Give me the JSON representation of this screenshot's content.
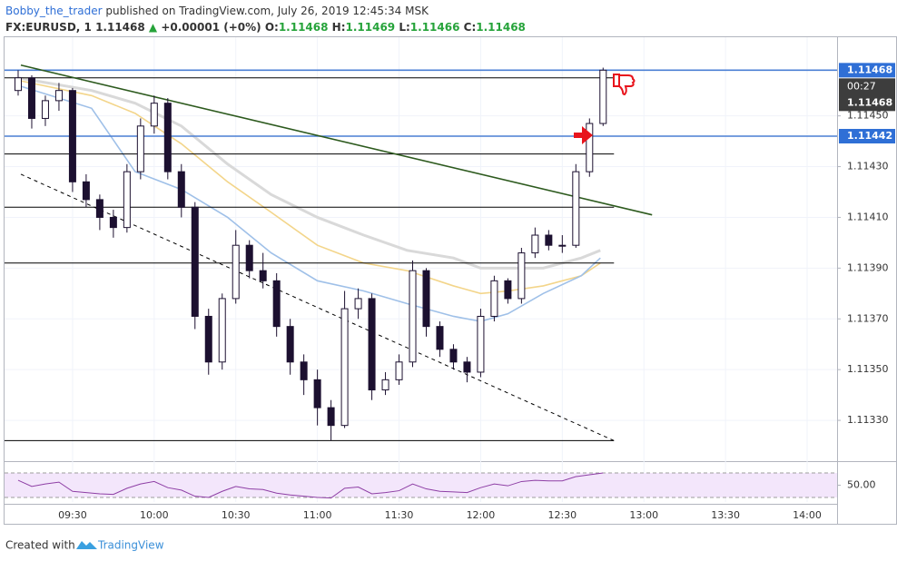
{
  "header": {
    "author": "Bobby_the_trader",
    "published": " published on TradingView.com, July 26, 2019 12:45:34 MSK",
    "symbol": "FX:EURUSD, 1",
    "last": "1.11468",
    "arrow": "▲",
    "change": "+0.00001 (+0%)",
    "o_label": "O:",
    "o": "1.11468",
    "h_label": "H:",
    "h": "1.11469",
    "l_label": "L:",
    "l": "1.11466",
    "c_label": "C:",
    "c": "1.11468"
  },
  "footer": {
    "created": "Created with",
    "brand": "TradingView"
  },
  "chart_data": {
    "type": "candlestick",
    "x": [
      "09:10",
      "09:15",
      "09:20",
      "09:25",
      "09:30",
      "09:35",
      "09:40",
      "09:45",
      "09:50",
      "09:55",
      "10:00",
      "10:05",
      "10:10",
      "10:15",
      "10:20",
      "10:25",
      "10:30",
      "10:35",
      "10:40",
      "10:45",
      "10:50",
      "10:55",
      "11:00",
      "11:05",
      "11:10",
      "11:15",
      "11:20",
      "11:25",
      "11:30",
      "11:35",
      "11:40",
      "11:45",
      "11:50",
      "11:55",
      "12:00",
      "12:05",
      "12:10",
      "12:15",
      "12:20",
      "12:25",
      "12:30",
      "12:35",
      "12:40",
      "12:45"
    ],
    "open": [
      1.1146,
      1.11465,
      1.11449,
      1.11456,
      1.1146,
      1.11424,
      1.11417,
      1.1141,
      1.11406,
      1.11428,
      1.11446,
      1.11455,
      1.11428,
      1.11414,
      1.11371,
      1.11353,
      1.11378,
      1.11399,
      1.11389,
      1.11385,
      1.11367,
      1.11353,
      1.11346,
      1.11335,
      1.11328,
      1.11374,
      1.11378,
      1.11342,
      1.11346,
      1.11353,
      1.11389,
      1.11367,
      1.11358,
      1.11353,
      1.11349,
      1.11371,
      1.11385,
      1.11378,
      1.11396,
      1.11403,
      1.11399,
      1.11399,
      1.11428,
      1.11447
    ],
    "high": [
      1.11468,
      1.11466,
      1.11458,
      1.11463,
      1.11461,
      1.11427,
      1.11419,
      1.11413,
      1.11431,
      1.11449,
      1.11458,
      1.11457,
      1.11431,
      1.11416,
      1.11374,
      1.1138,
      1.11405,
      1.11401,
      1.11396,
      1.11388,
      1.1137,
      1.11356,
      1.1135,
      1.11338,
      1.11381,
      1.11382,
      1.1138,
      1.11349,
      1.11356,
      1.11393,
      1.1139,
      1.11369,
      1.1136,
      1.11355,
      1.11374,
      1.11387,
      1.11386,
      1.11398,
      1.11406,
      1.11405,
      1.11403,
      1.11431,
      1.11449,
      1.11469
    ],
    "low": [
      1.11458,
      1.11445,
      1.11446,
      1.11452,
      1.1142,
      1.11414,
      1.11405,
      1.11402,
      1.11404,
      1.11425,
      1.11443,
      1.11425,
      1.1141,
      1.11366,
      1.11348,
      1.1135,
      1.11376,
      1.11386,
      1.11382,
      1.11363,
      1.11348,
      1.1134,
      1.11328,
      1.11322,
      1.11327,
      1.1137,
      1.11338,
      1.1134,
      1.11344,
      1.11351,
      1.11363,
      1.11355,
      1.1135,
      1.11345,
      1.11347,
      1.11369,
      1.11376,
      1.11376,
      1.11394,
      1.11397,
      1.11396,
      1.11398,
      1.11426,
      1.11446
    ],
    "close": [
      1.11465,
      1.11449,
      1.11456,
      1.1146,
      1.11424,
      1.11417,
      1.1141,
      1.11406,
      1.11428,
      1.11446,
      1.11455,
      1.11428,
      1.11414,
      1.11371,
      1.11353,
      1.11378,
      1.11399,
      1.11389,
      1.11385,
      1.11367,
      1.11353,
      1.11346,
      1.11335,
      1.11328,
      1.11374,
      1.11378,
      1.11342,
      1.11346,
      1.11353,
      1.11389,
      1.11367,
      1.11358,
      1.11353,
      1.11349,
      1.11371,
      1.11385,
      1.11378,
      1.11396,
      1.11403,
      1.11399,
      1.11399,
      1.11428,
      1.11447,
      1.11468
    ],
    "up_color": "#ffffff",
    "down_color": "#1c1030",
    "wick_color": "#1c1030",
    "xlim": [
      "09:05",
      "14:11"
    ],
    "ylim": [
      1.11315,
      1.11481
    ],
    "xticks": [
      "09:30",
      "10:00",
      "10:30",
      "11:00",
      "11:30",
      "12:00",
      "12:30",
      "13:00",
      "13:30",
      "14:00"
    ],
    "yticks": [
      {
        "value": 1.1133,
        "label": "1.11330"
      },
      {
        "value": 1.1135,
        "label": "1.11350"
      },
      {
        "value": 1.1137,
        "label": "1.11370"
      },
      {
        "value": 1.1139,
        "label": "1.11390"
      },
      {
        "value": 1.1141,
        "label": "1.11410"
      },
      {
        "value": 1.1143,
        "label": "1.11430"
      },
      {
        "value": 1.1145,
        "label": "1.11450"
      }
    ],
    "grid": true,
    "moving_averages": {
      "x": [
        "09:10",
        "09:37",
        "09:53",
        "10:10",
        "10:27",
        "10:43",
        "11:00",
        "11:17",
        "11:33",
        "11:50",
        "12:00",
        "12:10",
        "12:23",
        "12:37",
        "12:44"
      ],
      "series": [
        {
          "color": "#d9d9d9",
          "values": [
            1.11465,
            1.1146,
            1.11455,
            1.11446,
            1.11431,
            1.11419,
            1.1141,
            1.11403,
            1.11397,
            1.11394,
            1.1139,
            1.1139,
            1.1139,
            1.11394,
            1.11397
          ]
        },
        {
          "color": "#f3d58a",
          "values": [
            1.11464,
            1.11458,
            1.11451,
            1.11439,
            1.11424,
            1.11412,
            1.11399,
            1.11392,
            1.11389,
            1.11383,
            1.1138,
            1.11381,
            1.11383,
            1.11387,
            1.11392
          ]
        },
        {
          "color": "#9fc0e8",
          "values": [
            1.11462,
            1.11453,
            1.11428,
            1.11421,
            1.1141,
            1.11396,
            1.11385,
            1.11381,
            1.11376,
            1.11371,
            1.11369,
            1.11372,
            1.1138,
            1.11387,
            1.11394
          ]
        }
      ]
    },
    "levels": [
      {
        "price": 1.11468,
        "color": "#4a7fd4"
      },
      {
        "price": 1.11442,
        "color": "#4a7fd4"
      },
      {
        "price": 1.11465,
        "color": "#000000",
        "x_end": "12:49"
      },
      {
        "price": 1.11435,
        "color": "#000000",
        "x_end": "12:49"
      },
      {
        "price": 1.11414,
        "color": "#000000",
        "x_end": "12:49"
      },
      {
        "price": 1.11392,
        "color": "#000000",
        "x_end": "12:49"
      },
      {
        "price": 1.11322,
        "color": "#000000",
        "x_end": "12:49"
      }
    ],
    "trend_lines": [
      {
        "color": "#2d5a1e",
        "dashed": false,
        "points": [
          {
            "x": "09:11",
            "y": 1.1147
          },
          {
            "x": "13:03",
            "y": 1.11411
          }
        ]
      },
      {
        "color": "#000000",
        "dashed": true,
        "points": [
          {
            "x": "09:11",
            "y": 1.11427
          },
          {
            "x": "12:49",
            "y": 1.11322
          }
        ]
      }
    ],
    "price_labels": [
      {
        "value": 1.11468,
        "label": "1.11468",
        "color": "#2f6fd6"
      },
      {
        "value": 1.11442,
        "label": "1.11442",
        "color": "#2f6fd6"
      }
    ],
    "countdown": "00:27",
    "last_price_label": "1.11468",
    "rsi": {
      "color": "#8e3fa5",
      "ylim": [
        22.6,
        83.3
      ],
      "bands": [
        30,
        70
      ],
      "yticks": [
        {
          "value": 50,
          "label": "50.00"
        }
      ],
      "values": [
        58,
        48,
        52,
        55,
        40,
        38,
        36,
        35,
        45,
        52,
        56,
        46,
        42,
        32,
        30,
        40,
        48,
        44,
        43,
        37,
        34,
        32,
        30,
        29,
        45,
        47,
        36,
        38,
        41,
        52,
        44,
        40,
        39,
        38,
        46,
        52,
        49,
        56,
        58,
        57,
        57,
        64,
        67,
        70
      ]
    }
  }
}
